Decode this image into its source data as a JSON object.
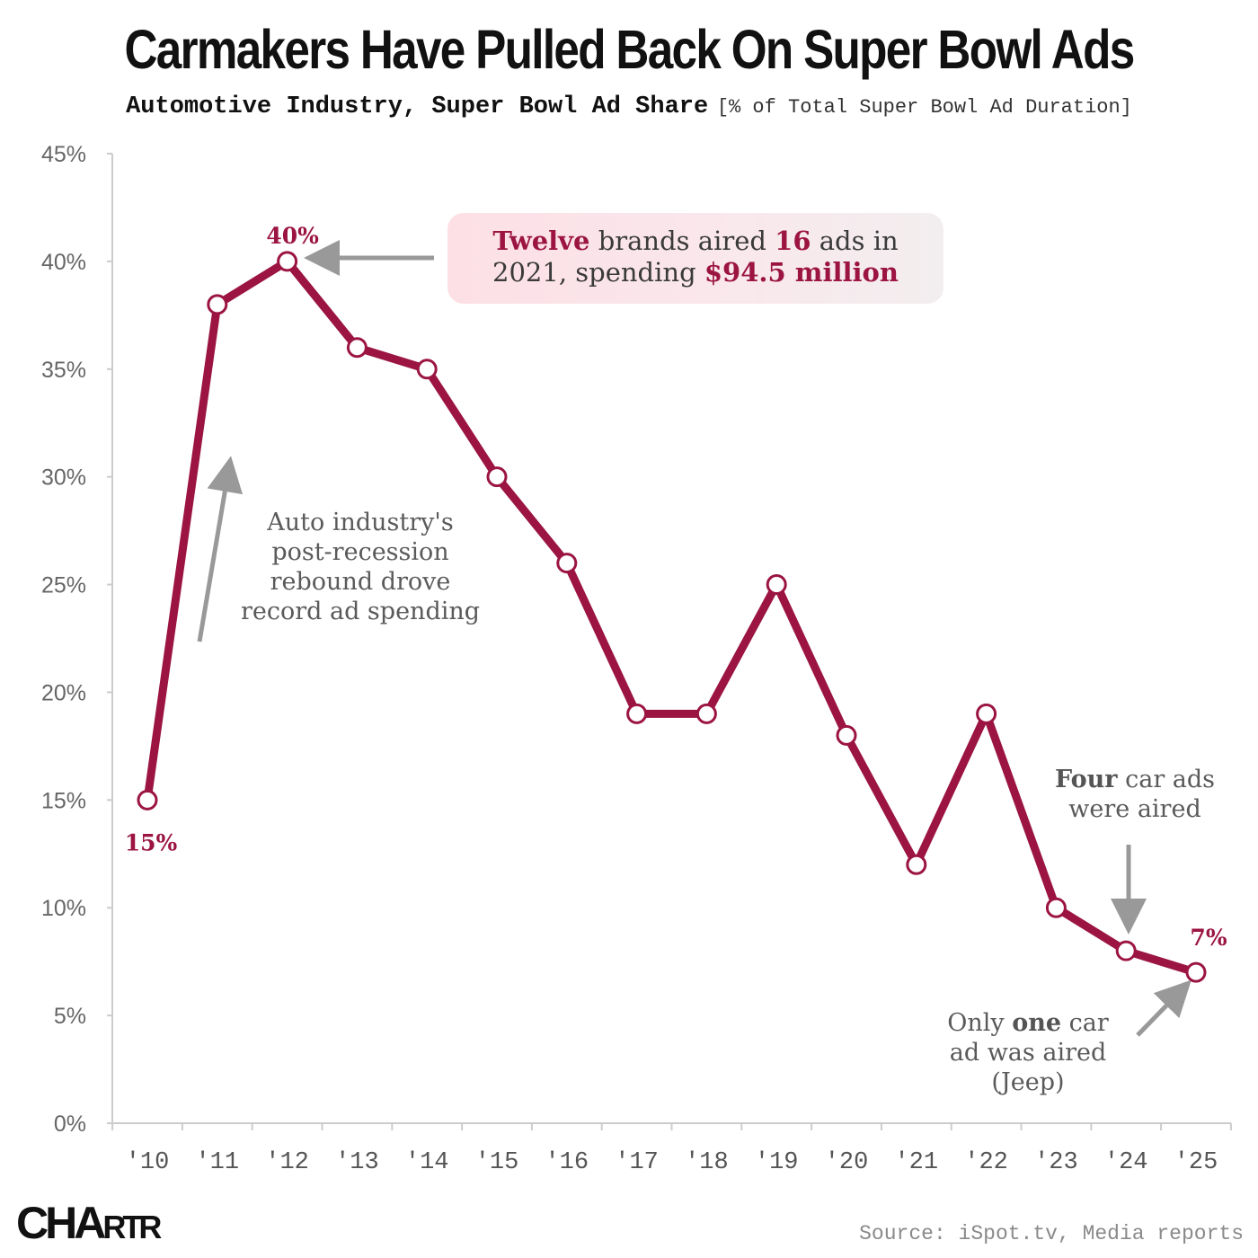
{
  "header": {
    "title": "Carmakers Have Pulled Back On Super Bowl Ads",
    "subtitle": "Automotive Industry, Super Bowl Ad Share",
    "unit": "[% of Total Super Bowl Ad Duration]"
  },
  "chart_data": {
    "type": "line",
    "title": "Carmakers Have Pulled Back On Super Bowl Ads",
    "subtitle": "Automotive Industry, Super Bowl Ad Share [% of Total Super Bowl Ad Duration]",
    "xlabel": "",
    "ylabel": "% of Total Super Bowl Ad Duration",
    "categories": [
      "'10",
      "'11",
      "'12",
      "'13",
      "'14",
      "'15",
      "'16",
      "'17",
      "'18",
      "'19",
      "'20",
      "'21",
      "'22",
      "'23",
      "'24",
      "'25"
    ],
    "series": [
      {
        "name": "Automotive Industry, Super Bowl Ad Share",
        "values": [
          15,
          38,
          40,
          36,
          35,
          30,
          26,
          19,
          19,
          25,
          18,
          12,
          19,
          10,
          8,
          7
        ]
      }
    ],
    "ylim": [
      0,
      45
    ],
    "yticks": [
      0,
      5,
      10,
      15,
      20,
      25,
      30,
      35,
      40,
      45
    ],
    "ytick_labels": [
      "0%",
      "5%",
      "10%",
      "15%",
      "20%",
      "25%",
      "30%",
      "35%",
      "40%",
      "45%"
    ],
    "data_labels": [
      {
        "index": 0,
        "text": "15%"
      },
      {
        "index": 2,
        "text": "40%"
      },
      {
        "index": 15,
        "text": "7%"
      }
    ],
    "grid": false,
    "colors": {
      "line": "#9b1442",
      "marker_fill": "#ffffff",
      "axis": "#cccccc",
      "arrow": "#999999"
    }
  },
  "annotations": {
    "peak_callout": {
      "w1": "Twelve",
      "t1": " brands aired ",
      "w2": "16",
      "t2": " ads in",
      "t3": "2021, spending ",
      "w3": "$94.5 million"
    },
    "rebound_note": {
      "line1": "Auto industry's",
      "line2": "post-recession",
      "line3": "rebound drove",
      "line4": "record ad spending"
    },
    "four_note": {
      "bold": "Four",
      "rest": " car ads",
      "line2": "were aired"
    },
    "one_note": {
      "pre": "Only ",
      "bold": "one",
      "post": " car",
      "line2": "ad was aired",
      "line3": "(Jeep)"
    }
  },
  "footer": {
    "logo_big": "CHA",
    "logo_small": "RTR",
    "source": "Source: iSpot.tv, Media reports"
  }
}
